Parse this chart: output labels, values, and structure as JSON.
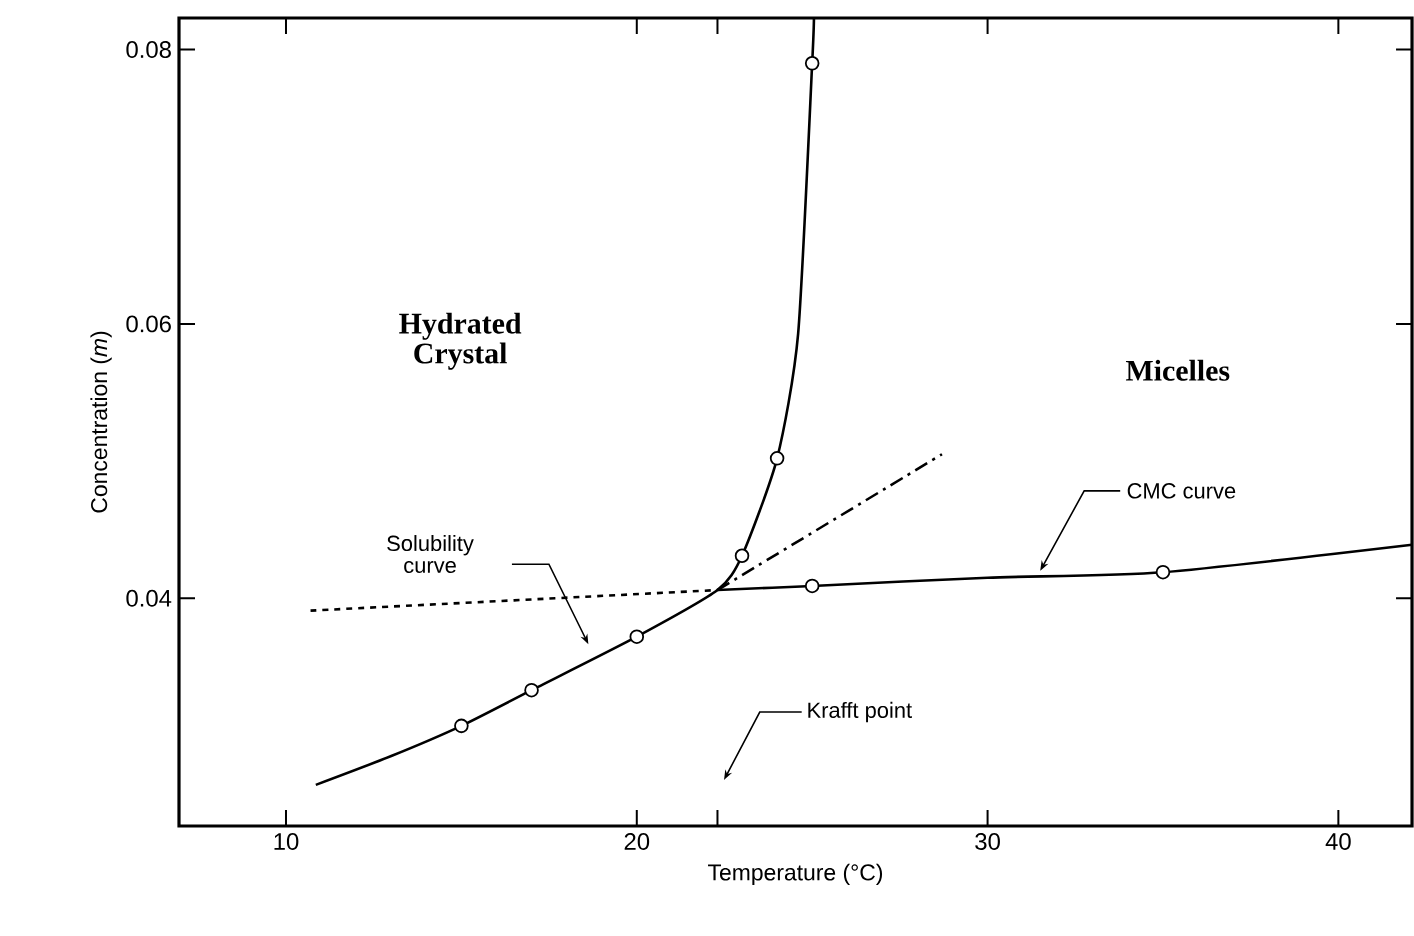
{
  "chart_data": {
    "type": "line",
    "xlabel": "Temperature (°C)",
    "ylabel": "Concentration (*m*)",
    "xlim": [
      6.95,
      42.1
    ],
    "ylim": [
      0.0234,
      0.0823
    ],
    "xticks": [
      10,
      20,
      {
        "value": 22.3,
        "label": null
      },
      30,
      40
    ],
    "yticks": [
      0.04,
      0.06,
      0.08
    ],
    "series": [
      {
        "color": "#000000",
        "line_style": "solid",
        "x": [
          10.85,
          13,
          15,
          17,
          20,
          22.3,
          23,
          24,
          24.6,
          25,
          25.05
        ],
        "values": [
          0.0264,
          0.0285,
          0.0307,
          0.0333,
          0.0372,
          0.0406,
          0.0431,
          0.0502,
          0.0593,
          0.079,
          0.0823
        ]
      },
      {
        "color": "#000000",
        "line_style": "solid",
        "x": [
          22.3,
          25,
          30,
          35,
          42.1
        ],
        "values": [
          0.0406,
          0.0409,
          0.0415,
          0.0419,
          0.0439
        ]
      },
      {
        "color": "#000000",
        "line_style": "dashed",
        "x": [
          10.7,
          22.3
        ],
        "values": [
          0.0391,
          0.0406
        ]
      },
      {
        "color": "#000000",
        "line_style": "dashdot",
        "x": [
          22.3,
          28.7
        ],
        "values": [
          0.0406,
          0.0505
        ]
      },
      {
        "type": "scatter",
        "color": "#000000",
        "marker": "circle",
        "x": [
          15,
          17,
          20,
          23,
          24,
          25,
          25,
          35
        ],
        "values": [
          0.0307,
          0.0333,
          0.0372,
          0.0431,
          0.0502,
          0.079,
          0.0409,
          0.0419
        ]
      }
    ],
    "annotations": [
      "Hydrated Crystal",
      "Micelles",
      "Solubility curve",
      {
        "text": "CMC curve",
        "x": 31.5,
        "y": 0.042
      },
      "Krafft point"
    ]
  }
}
